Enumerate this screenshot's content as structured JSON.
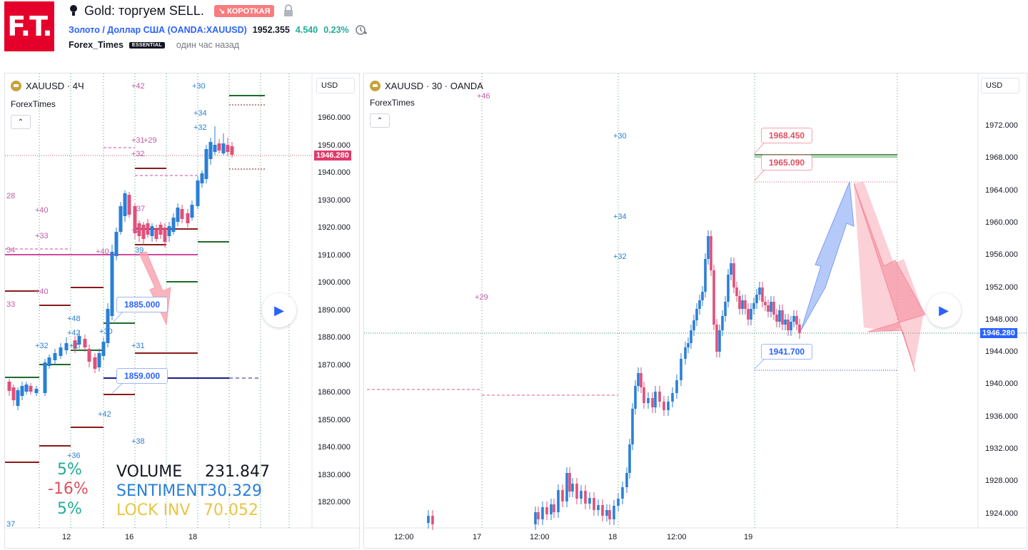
{
  "header": {
    "logo_text": "F.T.",
    "title": "Gold: торгуем SELL.",
    "direction_badge": "↘ КОРОТКАЯ",
    "symbol_link": "Золото / Доллар США (OANDA:XAUUSD)",
    "price": "1952.355",
    "change": "4.540",
    "change_pct": "0.23%",
    "author": "Forex_Times",
    "author_badge": "ESSENTIAL",
    "time_ago": "один час назад"
  },
  "left_chart": {
    "symbol": "XAUUSD · 4Ч",
    "source": "ForexTimes",
    "currency_button": "USD",
    "price_axis": [
      "1960.000",
      "1950.000",
      "1940.000",
      "1930.000",
      "1920.000",
      "1910.000",
      "1900.000",
      "1890.000",
      "1880.000",
      "1870.000",
      "1860.000",
      "1850.000",
      "1840.000",
      "1830.000",
      "1820.000"
    ],
    "last_price": "1946.280",
    "time_axis": [
      "12",
      "16",
      "18"
    ],
    "callout_a": "1885.000",
    "callout_b": "1859.000",
    "stats": {
      "pct1": "5%",
      "pct2": "-16%",
      "pct3": "5%",
      "volume_label": "VOLUME",
      "volume_value": "231.847",
      "sentiment_label": "SENTIMENT",
      "sentiment_value": "30.329",
      "lockinv_label": "LOCK INV",
      "lockinv_value": "70.052"
    },
    "annotations": [
      "+42",
      "+30",
      "+34",
      "+32",
      "+31",
      "+29",
      "+32",
      "28",
      "+40",
      "+33",
      "37",
      "+2",
      "34",
      "+40",
      "39",
      "+40",
      "33",
      "+48",
      "+42",
      "+32",
      "+2",
      "+30",
      "+31",
      "+42",
      "+38",
      "+36",
      "37"
    ]
  },
  "right_chart": {
    "symbol": "XAUUSD · 30 · OANDA",
    "source": "ForexTimes",
    "currency_button": "USD",
    "price_axis": [
      "1972.000",
      "1968.000",
      "1964.000",
      "1960.000",
      "1956.000",
      "1952.000",
      "1948.000",
      "1944.000",
      "1940.000",
      "1936.000",
      "1932.000",
      "1928.000",
      "1924.000"
    ],
    "last_price": "1946.280",
    "time_axis": [
      "12:00",
      "17",
      "12:00",
      "18",
      "12:00",
      "19"
    ],
    "callout_top": "1968.450",
    "callout_mid": "1965.090",
    "callout_low": "1941.700",
    "annotations": [
      "+46",
      "+30",
      "+34",
      "+32",
      "+29"
    ]
  },
  "colors": {
    "up": "#2a7fd6",
    "down": "#e0507a",
    "accent": "#2962ff",
    "short_badge": "#f77c80",
    "last_price_bg": "#e03a6a"
  }
}
